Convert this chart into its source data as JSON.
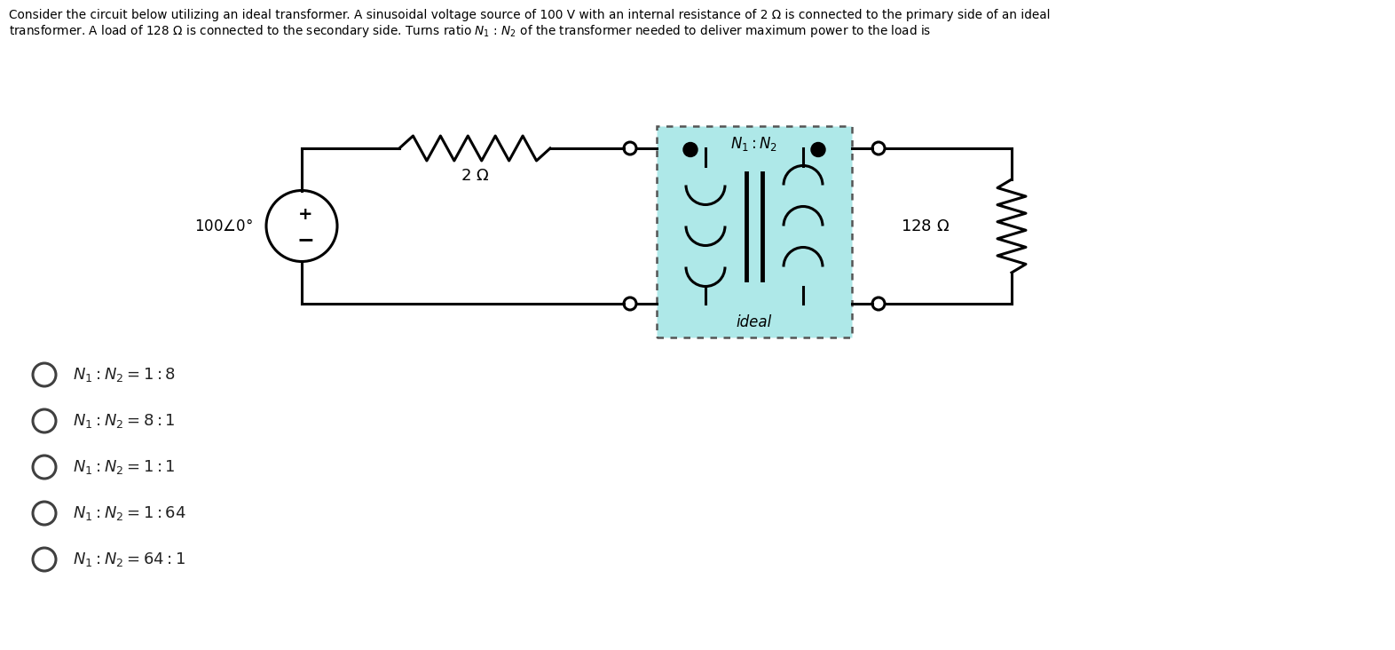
{
  "background_color": "#ffffff",
  "transformer_fill": "#aee8e8",
  "circuit_line_color": "#000000",
  "answer_options": [
    "$N_1 : N_2 = 1 : 8$",
    "$N_1 : N_2 = 8 : 1$",
    "$N_1 : N_2 = 1 : 1$",
    "$N_1 : N_2 = 1 : 64$",
    "$N_1 : N_2 = 64 : 1$"
  ],
  "line1": "Consider the circuit below utilizing an ideal transformer. A sinusoidal voltage source of 100 V with an internal resistance of 2 Ω is connected to the primary side of an ideal",
  "line2": "transformer. A load of 128 Ω is connected to the secondary side. Turns ratio $N_1$ : $N_2$ of the transformer needed to deliver maximum power to the load is",
  "source_label": "$100\\angle0\\degree$",
  "resistor1_label": "$2\\ \\Omega$",
  "resistor2_label": "$128\\ \\Omega$",
  "transformer_label": "$N_1:N_2$",
  "ideal_label": "ideal"
}
